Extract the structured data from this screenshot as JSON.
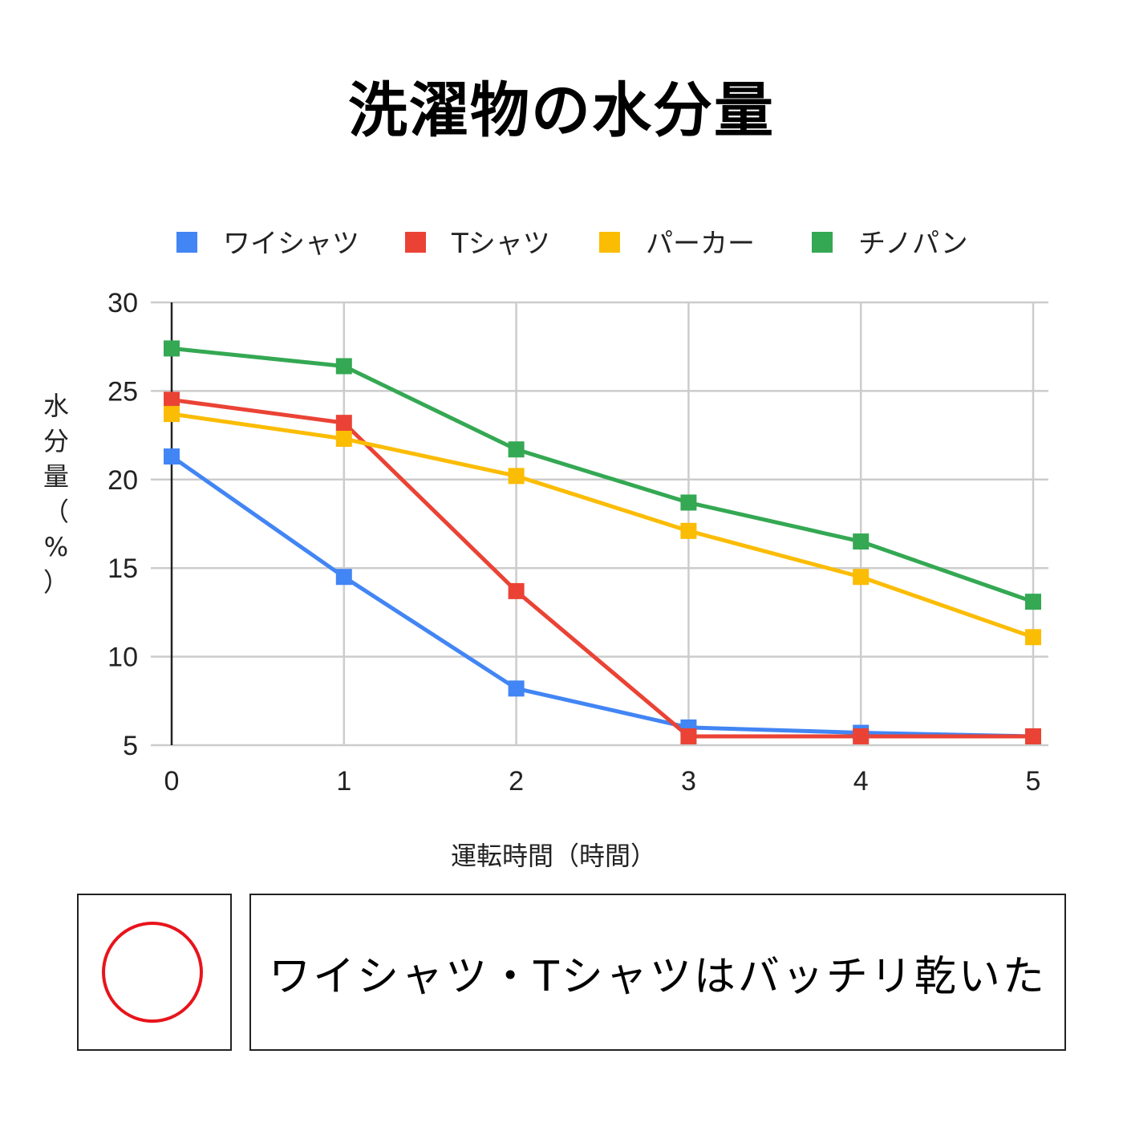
{
  "chart_data": {
    "type": "line",
    "title": "洗濯物の水分量",
    "xlabel": "運転時間（時間）",
    "ylabel": "水分量（%）",
    "x": [
      0,
      1,
      2,
      3,
      4,
      5
    ],
    "ylim": [
      5,
      30
    ],
    "yticks": [
      5,
      10,
      15,
      20,
      25,
      30
    ],
    "grid": true,
    "legend_position": "top",
    "marker": "square",
    "series": [
      {
        "name": "ワイシャツ",
        "color": "#4285f4",
        "values": [
          21.3,
          14.5,
          8.2,
          6.0,
          5.7,
          5.5
        ]
      },
      {
        "name": "Tシャツ",
        "color": "#ea4335",
        "values": [
          24.5,
          23.2,
          13.7,
          5.5,
          5.5,
          5.5
        ]
      },
      {
        "name": "パーカー",
        "color": "#fbbc04",
        "values": [
          23.7,
          22.3,
          20.2,
          17.1,
          14.5,
          11.1
        ]
      },
      {
        "name": "チノパン",
        "color": "#34a853",
        "values": [
          27.4,
          26.4,
          21.7,
          18.7,
          16.5,
          13.1
        ]
      }
    ]
  },
  "verdict": {
    "mark": "red-circle-icon",
    "mark_color": "#e8141b",
    "comment": "ワイシャツ・Tシャツはバッチリ乾いた"
  }
}
